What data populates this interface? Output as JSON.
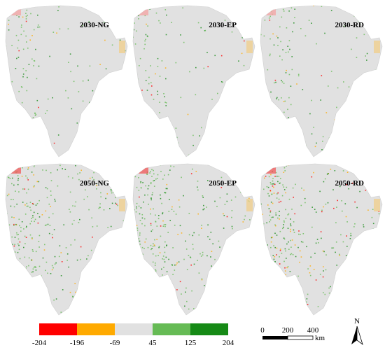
{
  "panels": [
    {
      "label": "2030-NG"
    },
    {
      "label": "2030-EP"
    },
    {
      "label": "2030-RD"
    },
    {
      "label": "2050-NG"
    },
    {
      "label": "2050-EP"
    },
    {
      "label": "2050-RD"
    }
  ],
  "legend": {
    "breaks": [
      -204,
      -196,
      -69,
      45,
      125,
      204
    ],
    "colors": [
      "#ff0000",
      "#ffaa00",
      "#e1e1e1",
      "#66bb55",
      "#168a16"
    ]
  },
  "scale_bar": {
    "labels": [
      "0",
      "200",
      "400"
    ],
    "unit": "km"
  },
  "north_arrow": {
    "label": "N"
  }
}
